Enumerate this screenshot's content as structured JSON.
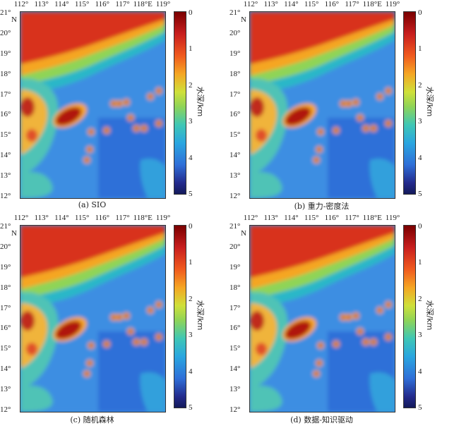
{
  "figure": {
    "lon_labels": [
      "112°",
      "113°",
      "114°",
      "115°",
      "116°",
      "117°",
      "118°E",
      "119°"
    ],
    "lat_labels": [
      "21°",
      "20°",
      "19°",
      "18°",
      "17°",
      "16°",
      "15°",
      "14°",
      "13°",
      "12°"
    ],
    "north_label": "N",
    "colorbar": {
      "title": "水深/km",
      "ticks": [
        "0",
        "1",
        "2",
        "3",
        "4",
        "5"
      ],
      "colors": [
        "#7a0000",
        "#c81e1e",
        "#f05a1e",
        "#f5a623",
        "#cfe03a",
        "#8fd457",
        "#3fc7b5",
        "#2aa6e0",
        "#2f6fd8",
        "#232a8c",
        "#141a5a"
      ]
    },
    "panels": [
      {
        "caption": "(a) SIO"
      },
      {
        "caption": "(b) 重力-密度法"
      },
      {
        "caption": "(c) 随机森林"
      },
      {
        "caption": "(d) 数据-知识驱动"
      }
    ]
  }
}
